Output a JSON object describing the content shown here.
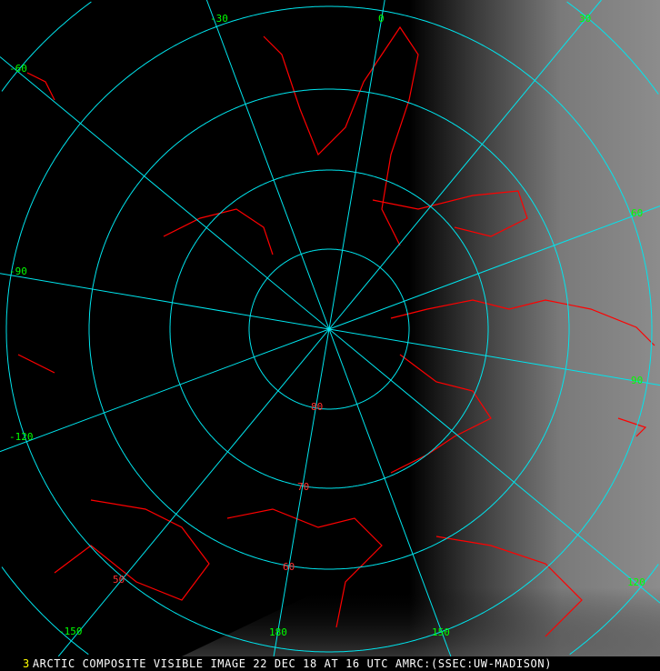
{
  "caption": {
    "frame_number": "3",
    "title": "ARCTIC COMPOSITE VISIBLE IMAGE 22 DEC 18 AT 16 UTC AMRC:(SSEC:UW-MADISON)"
  },
  "map": {
    "projection": "polar stereographic (North Pole)",
    "colors": {
      "graticule": "#00e5ee",
      "coastline": "#ff0000",
      "longitude_label": "#00ff00",
      "latitude_label": "#ff3030"
    },
    "latitude_labels": [
      "80",
      "70",
      "60",
      "50"
    ],
    "longitude_labels": [
      "-30",
      "0",
      "30",
      "60",
      "90",
      "120",
      "150",
      "180",
      "-150",
      "-120",
      "-90",
      "-60"
    ]
  }
}
